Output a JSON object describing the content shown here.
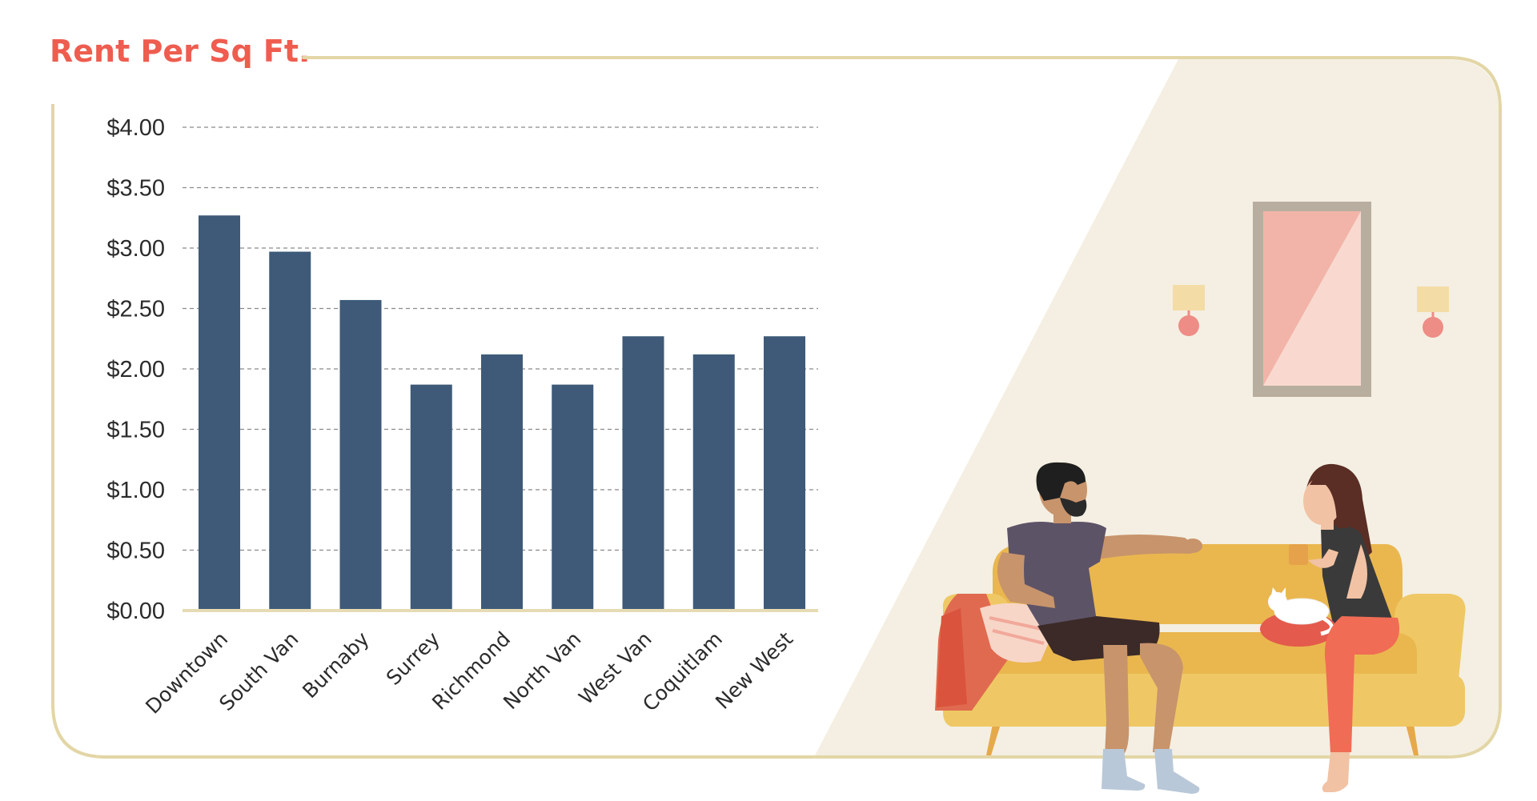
{
  "title": "Rent Per Sq Ft.",
  "colors": {
    "accent": "#ee5d4f",
    "frame": "#e3d6a6",
    "bar": "#3e5a78",
    "grid": "#8a8a8a",
    "baseline": "#e6dbb3",
    "room": "#f4efe2",
    "sofa": "#edc05a"
  },
  "chart_data": {
    "type": "bar",
    "title": "Rent Per Sq Ft.",
    "xlabel": "",
    "ylabel": "",
    "ylim": [
      0,
      4
    ],
    "yticks": [
      0,
      0.5,
      1,
      1.5,
      2,
      2.5,
      3,
      3.5,
      4
    ],
    "ytick_labels": [
      "$0.00",
      "$0.50",
      "$1.00",
      "$1.50",
      "$2.00",
      "$2.50",
      "$3.00",
      "$3.50",
      "$4.00"
    ],
    "categories": [
      "Downtown",
      "South Van",
      "Burnaby",
      "Surrey",
      "Richmond",
      "North Van",
      "West Van",
      "Coquitlam",
      "New West"
    ],
    "values": [
      3.27,
      2.97,
      2.57,
      1.87,
      2.12,
      1.87,
      2.27,
      2.12,
      2.27
    ],
    "grid": "horizontal dashed",
    "legend": "none"
  },
  "illustration": {
    "description_icons": [
      "couple-on-sofa-illustration",
      "wall-mirror-icon",
      "wall-lamp-icon",
      "cat-icon",
      "coffee-mug-icon"
    ]
  }
}
